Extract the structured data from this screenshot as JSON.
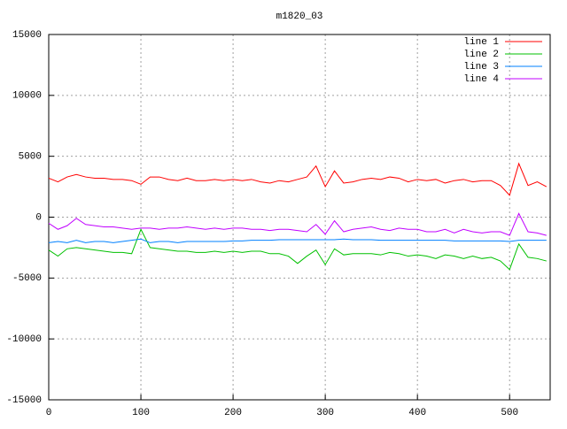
{
  "chart_data": {
    "type": "line",
    "title": "m1820_03",
    "x": [
      0,
      10,
      20,
      30,
      40,
      50,
      60,
      70,
      80,
      90,
      100,
      110,
      120,
      130,
      140,
      150,
      160,
      170,
      180,
      190,
      200,
      210,
      220,
      230,
      240,
      250,
      260,
      270,
      280,
      290,
      300,
      310,
      320,
      330,
      340,
      350,
      360,
      370,
      380,
      390,
      400,
      410,
      420,
      430,
      440,
      450,
      460,
      470,
      480,
      490,
      500,
      510,
      520,
      530,
      540
    ],
    "series": [
      {
        "name": "line 1",
        "color": "#ff0000",
        "values": [
          3200,
          2900,
          3300,
          3500,
          3300,
          3200,
          3200,
          3100,
          3100,
          3000,
          2700,
          3300,
          3300,
          3100,
          3000,
          3200,
          3000,
          3000,
          3100,
          3000,
          3100,
          3000,
          3100,
          2900,
          2800,
          3000,
          2900,
          3100,
          3300,
          4200,
          2500,
          3800,
          2800,
          2900,
          3100,
          3200,
          3100,
          3300,
          3200,
          2900,
          3100,
          3000,
          3100,
          2800,
          3000,
          3100,
          2900,
          3000,
          3000,
          2600,
          1800,
          4400,
          2600,
          2900,
          2500
        ]
      },
      {
        "name": "line 2",
        "color": "#00c000",
        "values": [
          -2700,
          -3200,
          -2600,
          -2500,
          -2600,
          -2700,
          -2800,
          -2900,
          -2900,
          -3000,
          -1000,
          -2500,
          -2600,
          -2700,
          -2800,
          -2800,
          -2900,
          -2900,
          -2800,
          -2900,
          -2800,
          -2900,
          -2800,
          -2800,
          -3000,
          -3000,
          -3200,
          -3800,
          -3200,
          -2700,
          -3900,
          -2600,
          -3100,
          -3000,
          -3000,
          -3000,
          -3100,
          -2900,
          -3000,
          -3200,
          -3100,
          -3200,
          -3400,
          -3100,
          -3200,
          -3400,
          -3200,
          -3400,
          -3300,
          -3600,
          -4300,
          -2200,
          -3300,
          -3400,
          -3600
        ]
      },
      {
        "name": "line 3",
        "color": "#0080ff",
        "values": [
          -2100,
          -2000,
          -2100,
          -1900,
          -2100,
          -2000,
          -2000,
          -2100,
          -2000,
          -1900,
          -1800,
          -2100,
          -2000,
          -2000,
          -2100,
          -2000,
          -2000,
          -2000,
          -2000,
          -2000,
          -1950,
          -1950,
          -1900,
          -1900,
          -1900,
          -1850,
          -1850,
          -1850,
          -1850,
          -1850,
          -1850,
          -1850,
          -1800,
          -1850,
          -1850,
          -1850,
          -1900,
          -1900,
          -1900,
          -1900,
          -1900,
          -1900,
          -1900,
          -1900,
          -1950,
          -1950,
          -1950,
          -1950,
          -1950,
          -1950,
          -2000,
          -1900,
          -1900,
          -1900,
          -1900
        ]
      },
      {
        "name": "line 4",
        "color": "#c000ff",
        "values": [
          -500,
          -1000,
          -700,
          -100,
          -600,
          -700,
          -800,
          -800,
          -900,
          -1000,
          -900,
          -900,
          -1000,
          -900,
          -900,
          -800,
          -900,
          -1000,
          -900,
          -1000,
          -900,
          -900,
          -1000,
          -1000,
          -1100,
          -1000,
          -1000,
          -1100,
          -1200,
          -600,
          -1400,
          -300,
          -1200,
          -1000,
          -900,
          -800,
          -1000,
          -1100,
          -900,
          -1000,
          -1000,
          -1200,
          -1200,
          -1000,
          -1300,
          -1000,
          -1200,
          -1300,
          -1200,
          -1200,
          -1500,
          300,
          -1200,
          -1300,
          -1500
        ]
      }
    ],
    "xlim": [
      0,
      544
    ],
    "ylim": [
      -15000,
      15000
    ],
    "xticks": [
      0,
      100,
      200,
      300,
      400,
      500
    ],
    "yticks": [
      -15000,
      -10000,
      -5000,
      0,
      5000,
      10000,
      15000
    ],
    "grid": true,
    "legend": "top-right"
  }
}
